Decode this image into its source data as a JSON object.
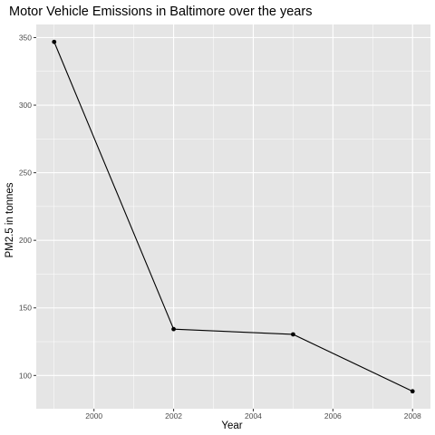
{
  "chart_data": {
    "type": "line",
    "title": "Motor Vehicle Emissions in Baltimore over the years",
    "xlabel": "Year",
    "ylabel": "PM2.5 in tonnes",
    "x": [
      1999,
      2002,
      2005,
      2008
    ],
    "values": [
      346.8,
      134.3,
      130.4,
      88.3
    ],
    "xlim": [
      1998.55,
      2008.45
    ],
    "ylim": [
      75.4,
      359.7
    ],
    "xticks": [
      2000,
      2002,
      2004,
      2006,
      2008
    ],
    "yticks": [
      100,
      150,
      200,
      250,
      300,
      350
    ],
    "xtick_labels": [
      "2000",
      "2002",
      "2004",
      "2006",
      "2008"
    ],
    "ytick_labels": [
      "100",
      "150",
      "200",
      "250",
      "300",
      "350"
    ],
    "grid": true,
    "legend": "none",
    "colors": {
      "panel": "#e5e5e5",
      "grid": "#ffffff",
      "line": "#000000",
      "tick_text": "#4d4d4d"
    }
  }
}
